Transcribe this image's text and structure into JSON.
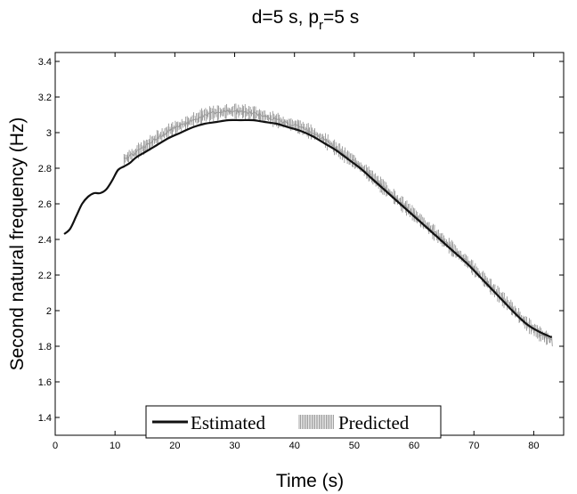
{
  "chart_data": {
    "type": "line",
    "title": {
      "main": "d=5 s, p",
      "sub": "r",
      "rest": "=5 s"
    },
    "xlabel": "Time (s)",
    "ylabel": "Second natural frequency (Hz)",
    "xlim": [
      0,
      85
    ],
    "ylim": [
      1.3,
      3.45
    ],
    "xticks": [
      0,
      10,
      20,
      30,
      40,
      50,
      60,
      70,
      80
    ],
    "yticks": [
      1.4,
      1.6,
      1.8,
      2,
      2.2,
      2.4,
      2.6,
      2.8,
      3,
      3.2,
      3.4
    ],
    "grid": false,
    "legend_placement": "bottom-center",
    "series": [
      {
        "name": "Estimated",
        "color": "#111111",
        "style": "solid",
        "x": [
          1.5,
          2.5,
          3.5,
          4.5,
          5.5,
          6.5,
          7.5,
          8.5,
          9.5,
          10.5,
          11.5,
          12.5,
          13.5,
          15,
          17,
          19,
          21,
          23,
          25,
          27,
          29,
          31,
          33,
          35,
          37,
          39,
          41,
          43,
          45,
          47,
          49,
          51,
          53,
          55,
          57,
          59,
          61,
          63,
          65,
          67,
          69,
          71,
          73,
          75,
          77,
          79,
          81,
          83
        ],
        "y": [
          2.43,
          2.46,
          2.53,
          2.6,
          2.64,
          2.66,
          2.66,
          2.68,
          2.73,
          2.79,
          2.81,
          2.83,
          2.86,
          2.89,
          2.93,
          2.97,
          3.0,
          3.03,
          3.05,
          3.06,
          3.07,
          3.07,
          3.07,
          3.06,
          3.05,
          3.03,
          3.01,
          2.98,
          2.94,
          2.9,
          2.85,
          2.8,
          2.74,
          2.68,
          2.62,
          2.56,
          2.5,
          2.44,
          2.38,
          2.32,
          2.26,
          2.19,
          2.12,
          2.05,
          1.98,
          1.92,
          1.88,
          1.85
        ]
      },
      {
        "name": "Predicted",
        "color": "#8a8a8a",
        "style": "hatched",
        "x": [
          11.5,
          13,
          15,
          17,
          19,
          21,
          23,
          25,
          27,
          29,
          31,
          33,
          35,
          37,
          39,
          41,
          43,
          45,
          47,
          49,
          51,
          53,
          55,
          57,
          59,
          61,
          63,
          65,
          67,
          69,
          71,
          73,
          75,
          77,
          79,
          81,
          83
        ],
        "y": [
          2.85,
          2.88,
          2.92,
          2.97,
          3.01,
          3.04,
          3.07,
          3.1,
          3.11,
          3.12,
          3.12,
          3.11,
          3.09,
          3.07,
          3.05,
          3.03,
          3.0,
          2.96,
          2.91,
          2.86,
          2.81,
          2.75,
          2.69,
          2.63,
          2.57,
          2.51,
          2.45,
          2.39,
          2.33,
          2.27,
          2.2,
          2.13,
          2.06,
          1.99,
          1.92,
          1.87,
          1.83
        ]
      }
    ]
  }
}
